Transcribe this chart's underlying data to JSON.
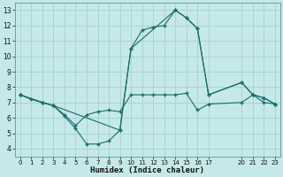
{
  "bg_color": "#c5e8e8",
  "grid_color": "#a8d0d0",
  "line_color": "#1a6b6b",
  "xlabel": "Humidex (Indice chaleur)",
  "xlim": [
    -0.5,
    23.5
  ],
  "ylim": [
    3.5,
    13.5
  ],
  "xticks": [
    0,
    1,
    2,
    3,
    4,
    5,
    6,
    7,
    8,
    9,
    10,
    11,
    12,
    13,
    14,
    15,
    16,
    17,
    20,
    21,
    22,
    23
  ],
  "yticks": [
    4,
    5,
    6,
    7,
    8,
    9,
    10,
    11,
    12,
    13
  ],
  "line1_x": [
    0,
    1,
    2,
    3,
    4,
    5,
    6,
    7,
    8,
    9,
    10,
    11,
    12,
    13,
    14,
    15,
    16,
    17,
    20,
    21,
    22,
    23
  ],
  "line1_y": [
    7.5,
    7.2,
    7.0,
    6.8,
    6.2,
    5.5,
    6.2,
    6.4,
    6.5,
    6.4,
    7.5,
    7.5,
    7.5,
    7.5,
    7.5,
    7.6,
    6.5,
    6.9,
    7.0,
    7.5,
    7.0,
    6.9
  ],
  "line2_x": [
    0,
    2,
    3,
    9,
    10,
    11,
    12,
    13,
    14,
    15,
    16,
    17,
    20,
    21,
    22,
    23
  ],
  "line2_y": [
    7.5,
    7.0,
    6.8,
    5.2,
    10.5,
    11.7,
    11.9,
    12.0,
    13.0,
    12.5,
    11.8,
    7.5,
    8.3,
    7.5,
    7.3,
    6.9
  ],
  "line3_x": [
    0,
    2,
    3,
    4,
    5,
    6,
    7,
    8,
    9,
    10,
    14,
    15,
    16,
    17,
    20,
    21,
    22,
    23
  ],
  "line3_y": [
    7.5,
    7.0,
    6.8,
    6.1,
    5.3,
    4.3,
    4.3,
    4.5,
    5.2,
    10.5,
    13.0,
    12.5,
    11.8,
    7.5,
    8.3,
    7.5,
    7.3,
    6.9
  ]
}
